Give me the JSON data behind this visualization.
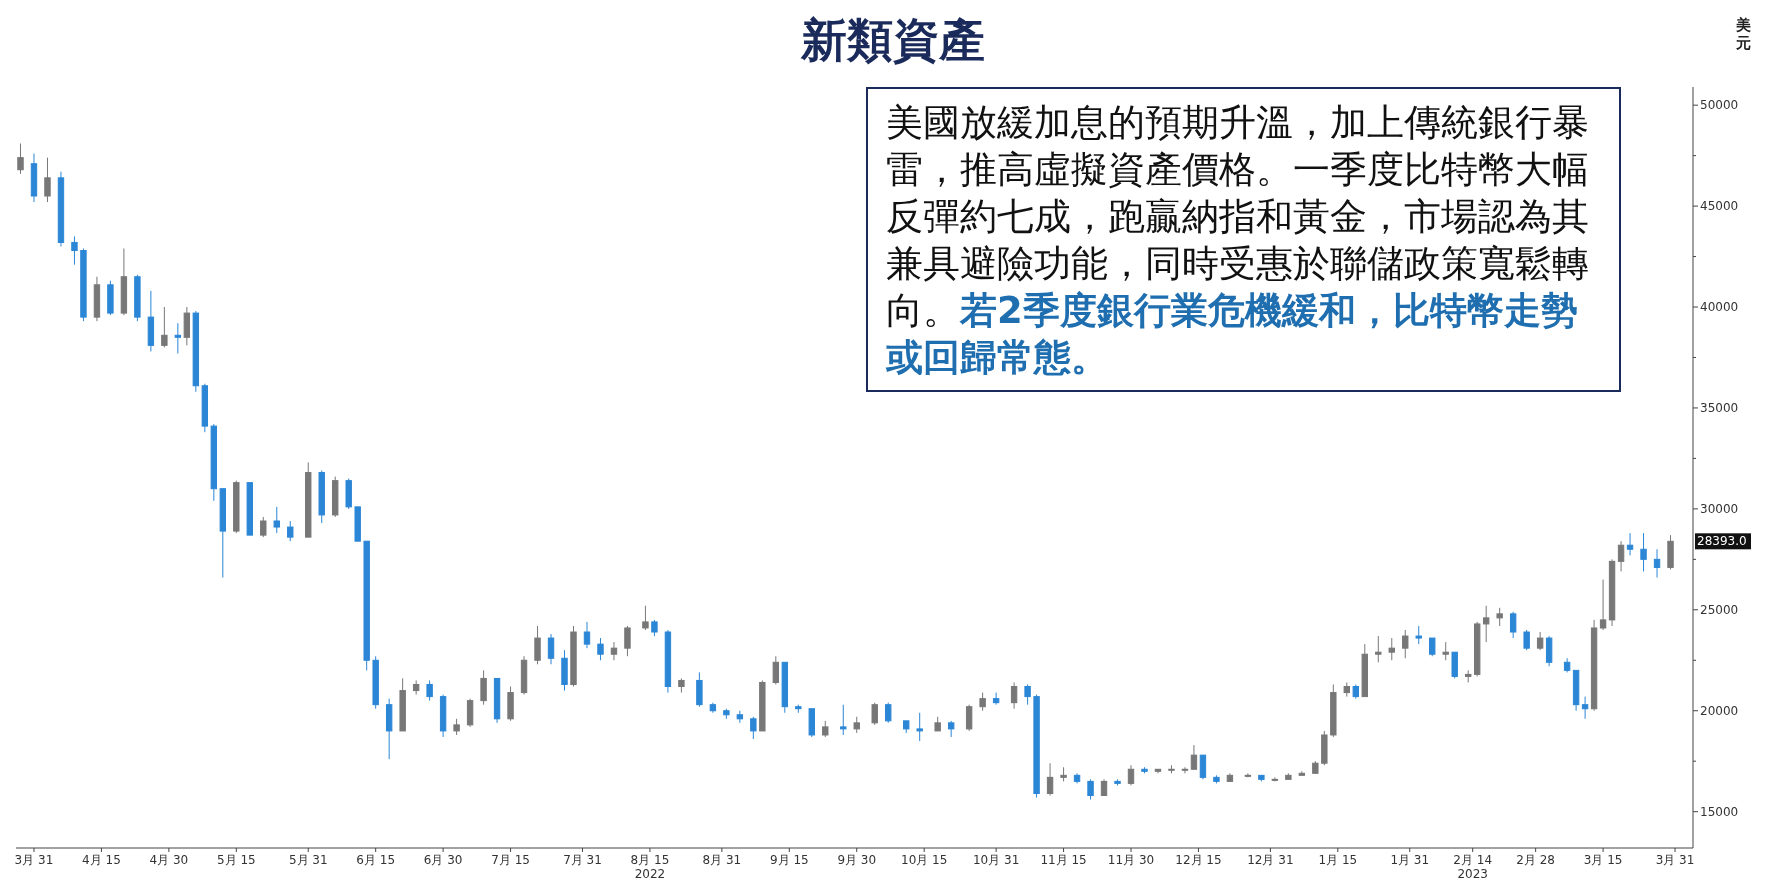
{
  "chart_data": {
    "type": "candlestick",
    "title": "新類資產",
    "ylabel": "美元",
    "annotations": [
      "美國放緩加息的預期升溫，加上傳統銀行暴雷，推高虛擬資產價格。一季度比特幣大幅反彈約七成，跑贏納指和黃金，市場認為其兼具避險功能，同時受惠於聯儲政策寬鬆轉向。",
      "若2季度銀行業危機緩和，比特幣走勢或回歸常態。",
      "28393.0"
    ],
    "xlim": [
      "2022-03-27",
      "2023-04-04"
    ],
    "xticks": [
      {
        "value": "2022-03-31",
        "label": "3月 31"
      },
      {
        "value": "2022-04-15",
        "label": "4月 15"
      },
      {
        "value": "2022-04-30",
        "label": "4月 30"
      },
      {
        "value": "2022-05-15",
        "label": "5月 15"
      },
      {
        "value": "2022-05-31",
        "label": "5月 31"
      },
      {
        "value": "2022-06-15",
        "label": "6月 15"
      },
      {
        "value": "2022-06-30",
        "label": "6月 30"
      },
      {
        "value": "2022-07-15",
        "label": "7月 15"
      },
      {
        "value": "2022-07-31",
        "label": "7月 31"
      },
      {
        "value": "2022-08-15",
        "label": "8月 15\n2022"
      },
      {
        "value": "2022-08-31",
        "label": "8月 31"
      },
      {
        "value": "2022-09-15",
        "label": "9月 15"
      },
      {
        "value": "2022-09-30",
        "label": "9月 30"
      },
      {
        "value": "2022-10-15",
        "label": "10月 15"
      },
      {
        "value": "2022-10-31",
        "label": "10月 31"
      },
      {
        "value": "2022-11-15",
        "label": "11月 15"
      },
      {
        "value": "2022-11-30",
        "label": "11月 30"
      },
      {
        "value": "2022-12-15",
        "label": "12月 15"
      },
      {
        "value": "2022-12-31",
        "label": "12月 31"
      },
      {
        "value": "2023-01-15",
        "label": "1月 15"
      },
      {
        "value": "2023-01-31",
        "label": "1月 31"
      },
      {
        "value": "2023-02-14",
        "label": "2月 14\n2023"
      },
      {
        "value": "2023-02-28",
        "label": "2月 28"
      },
      {
        "value": "2023-03-15",
        "label": "3月 15"
      },
      {
        "value": "2023-03-31",
        "label": "3月 31"
      }
    ],
    "ylim": [
      13200,
      50900
    ],
    "yticks": [
      15000,
      {
        "value": 17500,
        "label": null
      },
      20000,
      {
        "value": 22500,
        "label": null
      },
      25000,
      {
        "value": 27500,
        "label": null
      },
      30000,
      {
        "value": 32500,
        "label": null
      },
      35000,
      {
        "value": 37500,
        "label": null
      },
      40000,
      {
        "value": 42500,
        "label": null
      },
      45000,
      {
        "value": 47500,
        "label": null
      },
      50000
    ],
    "series": [
      {
        "colors": [
          "#777777",
          "#2b86d6",
          "#777777",
          "#2b86d6",
          "#2b86d6",
          "#2b86d6",
          "#777777",
          "#2b86d6",
          "#777777",
          "#2b86d6",
          "#2b86d6",
          "#777777",
          "#2b86d6",
          "#777777",
          "#2b86d6",
          "#2b86d6",
          "#2b86d6",
          "#2b86d6",
          "#777777",
          "#2b86d6",
          "#777777",
          "#2b86d6",
          "#2b86d6",
          "#777777",
          "#2b86d6",
          "#777777",
          "#2b86d6",
          "#2b86d6",
          "#2b86d6",
          "#2b86d6",
          "#2b86d6",
          "#777777",
          "#777777",
          "#2b86d6",
          "#2b86d6",
          "#777777",
          "#777777",
          "#777777",
          "#2b86d6",
          "#777777",
          "#777777",
          "#777777",
          "#2b86d6",
          "#2b86d6",
          "#777777",
          "#2b86d6",
          "#2b86d6",
          "#777777",
          "#777777",
          "#777777",
          "#2b86d6",
          "#2b86d6",
          "#777777",
          "#2b86d6",
          "#2b86d6",
          "#2b86d6",
          "#2b86d6",
          "#2b86d6",
          "#777777",
          "#777777",
          "#2b86d6",
          "#2b86d6",
          "#2b86d6",
          "#777777",
          "#2b86d6",
          "#777777",
          "#777777",
          "#2b86d6",
          "#2b86d6",
          "#2b86d6",
          "#777777",
          "#2b86d6",
          "#777777",
          "#777777",
          "#2b86d6",
          "#777777",
          "#2b86d6",
          "#2b86d6",
          "#777777",
          "#777777",
          "#2b86d6",
          "#2b86d6",
          "#777777",
          "#2b86d6",
          "#777777",
          "#2b86d6",
          "#777777",
          "#777777",
          "#777777",
          "#777777",
          "#2b86d6",
          "#2b86d6",
          "#777777",
          "#777777",
          "#2b86d6",
          "#777777",
          "#777777",
          "#777777",
          "#777777",
          "#777777",
          "#777777",
          "#777777",
          "#2b86d6",
          "#777777",
          "#777777",
          "#777777",
          "#777777",
          "#2b86d6",
          "#2b86d6",
          "#777777",
          "#2b86d6",
          "#777777",
          "#777777",
          "#777777",
          "#777777",
          "#2b86d6",
          "#2b86d6",
          "#777777",
          "#2b86d6",
          "#2b86d6",
          "#2b86d6",
          "#2b86d6",
          "#777777",
          "#777777",
          "#777777",
          "#777777",
          "#2b86d6",
          "#2b86d6",
          "#2b86d6",
          "#777777"
        ],
        "x": [
          "2022-03-28",
          "2022-03-31",
          "2022-04-03",
          "2022-04-06",
          "2022-04-09",
          "2022-04-11",
          "2022-04-14",
          "2022-04-17",
          "2022-04-20",
          "2022-04-23",
          "2022-04-26",
          "2022-04-29",
          "2022-05-02",
          "2022-05-04",
          "2022-05-06",
          "2022-05-08",
          "2022-05-10",
          "2022-05-12",
          "2022-05-15",
          "2022-05-18",
          "2022-05-21",
          "2022-05-24",
          "2022-05-27",
          "2022-05-31",
          "2022-06-03",
          "2022-06-06",
          "2022-06-09",
          "2022-06-11",
          "2022-06-13",
          "2022-06-15",
          "2022-06-18",
          "2022-06-21",
          "2022-06-24",
          "2022-06-27",
          "2022-06-30",
          "2022-07-03",
          "2022-07-06",
          "2022-07-09",
          "2022-07-12",
          "2022-07-15",
          "2022-07-18",
          "2022-07-21",
          "2022-07-24",
          "2022-07-27",
          "2022-07-29",
          "2022-08-01",
          "2022-08-04",
          "2022-08-07",
          "2022-08-10",
          "2022-08-14",
          "2022-08-16",
          "2022-08-19",
          "2022-08-22",
          "2022-08-26",
          "2022-08-29",
          "2022-09-01",
          "2022-09-04",
          "2022-09-07",
          "2022-09-09",
          "2022-09-12",
          "2022-09-14",
          "2022-09-17",
          "2022-09-20",
          "2022-09-23",
          "2022-09-27",
          "2022-09-30",
          "2022-10-04",
          "2022-10-07",
          "2022-10-11",
          "2022-10-14",
          "2022-10-18",
          "2022-10-21",
          "2022-10-25",
          "2022-10-28",
          "2022-10-31",
          "2022-11-04",
          "2022-11-07",
          "2022-11-09",
          "2022-11-12",
          "2022-11-15",
          "2022-11-18",
          "2022-11-21",
          "2022-11-24",
          "2022-11-27",
          "2022-11-30",
          "2022-12-03",
          "2022-12-06",
          "2022-12-09",
          "2022-12-12",
          "2022-12-14",
          "2022-12-16",
          "2022-12-19",
          "2022-12-22",
          "2022-12-26",
          "2022-12-29",
          "2023-01-01",
          "2023-01-04",
          "2023-01-07",
          "2023-01-10",
          "2023-01-12",
          "2023-01-14",
          "2023-01-17",
          "2023-01-19",
          "2023-01-21",
          "2023-01-24",
          "2023-01-27",
          "2023-01-30",
          "2023-02-02",
          "2023-02-05",
          "2023-02-08",
          "2023-02-10",
          "2023-02-13",
          "2023-02-15",
          "2023-02-17",
          "2023-02-20",
          "2023-02-23",
          "2023-02-26",
          "2023-03-01",
          "2023-03-03",
          "2023-03-07",
          "2023-03-09",
          "2023-03-11",
          "2023-03-13",
          "2023-03-15",
          "2023-03-17",
          "2023-03-19",
          "2023-03-21",
          "2023-03-24",
          "2023-03-27",
          "2023-03-30"
        ],
        "ohlc": [
          [
            46800,
            48100,
            46600,
            47400
          ],
          [
            47100,
            47600,
            45200,
            45500
          ],
          [
            45500,
            47400,
            45200,
            46400
          ],
          [
            46400,
            46700,
            43000,
            43200
          ],
          [
            43200,
            43500,
            42100,
            42800
          ],
          [
            42800,
            42900,
            39300,
            39500
          ],
          [
            39500,
            41500,
            39300,
            41100
          ],
          [
            41100,
            41300,
            39600,
            39700
          ],
          [
            39700,
            42900,
            39600,
            41500
          ],
          [
            41500,
            41600,
            39300,
            39500
          ],
          [
            39500,
            40800,
            37800,
            38100
          ],
          [
            38100,
            40000,
            38000,
            38600
          ],
          [
            38600,
            39200,
            37700,
            38500
          ],
          [
            38500,
            40000,
            38100,
            39700
          ],
          [
            39700,
            39800,
            35800,
            36100
          ],
          [
            36100,
            36200,
            33800,
            34100
          ],
          [
            34100,
            34200,
            30400,
            31000
          ],
          [
            31000,
            31000,
            26600,
            28900
          ],
          [
            28900,
            31400,
            28800,
            31300
          ],
          [
            31300,
            31300,
            28700,
            28700
          ],
          [
            28700,
            29600,
            28600,
            29400
          ],
          [
            29400,
            30100,
            28800,
            29100
          ],
          [
            29100,
            29400,
            28400,
            28600
          ],
          [
            28600,
            32300,
            28600,
            31800
          ],
          [
            31800,
            31900,
            29300,
            29700
          ],
          [
            29700,
            31600,
            29600,
            31400
          ],
          [
            31400,
            31500,
            30000,
            30100
          ],
          [
            30100,
            30100,
            28400,
            28400
          ],
          [
            28400,
            28400,
            22000,
            22500
          ],
          [
            22500,
            22700,
            20100,
            20300
          ],
          [
            20300,
            20600,
            17600,
            19000
          ],
          [
            19000,
            21600,
            19000,
            21000
          ],
          [
            21000,
            21500,
            20800,
            21300
          ],
          [
            21300,
            21500,
            20500,
            20700
          ],
          [
            20700,
            20800,
            18700,
            19000
          ],
          [
            19000,
            19600,
            18800,
            19300
          ],
          [
            19300,
            20600,
            19200,
            20500
          ],
          [
            20500,
            22000,
            20300,
            21600
          ],
          [
            21600,
            21600,
            19400,
            19600
          ],
          [
            19600,
            21200,
            19500,
            20900
          ],
          [
            20900,
            22700,
            20800,
            22500
          ],
          [
            22500,
            24200,
            22300,
            23600
          ],
          [
            23600,
            23800,
            22300,
            22600
          ],
          [
            22600,
            23000,
            21000,
            21300
          ],
          [
            21300,
            24200,
            21200,
            23900
          ],
          [
            23900,
            24400,
            23100,
            23300
          ],
          [
            23300,
            23600,
            22500,
            22800
          ],
          [
            22800,
            23400,
            22500,
            23100
          ],
          [
            23100,
            24200,
            22700,
            24100
          ],
          [
            24100,
            25200,
            24000,
            24400
          ],
          [
            24400,
            24500,
            23700,
            23900
          ],
          [
            23900,
            24000,
            20900,
            21200
          ],
          [
            21200,
            21600,
            20900,
            21500
          ],
          [
            21500,
            21900,
            20200,
            20300
          ],
          [
            20300,
            20400,
            19900,
            20000
          ],
          [
            20000,
            20100,
            19600,
            19800
          ],
          [
            19800,
            20000,
            19400,
            19600
          ],
          [
            19600,
            19700,
            18600,
            19000
          ],
          [
            19000,
            21500,
            19000,
            21400
          ],
          [
            21400,
            22700,
            21300,
            22400
          ],
          [
            22400,
            22400,
            19900,
            20200
          ],
          [
            20200,
            20300,
            19900,
            20100
          ],
          [
            20100,
            20100,
            18700,
            18800
          ],
          [
            18800,
            19500,
            18700,
            19200
          ],
          [
            19200,
            20300,
            18800,
            19100
          ],
          [
            19100,
            19700,
            18900,
            19400
          ],
          [
            19400,
            20400,
            19300,
            20300
          ],
          [
            20300,
            20400,
            19400,
            19500
          ],
          [
            19500,
            19500,
            18900,
            19100
          ],
          [
            19100,
            19900,
            18500,
            19000
          ],
          [
            19000,
            19700,
            19000,
            19400
          ],
          [
            19400,
            19500,
            18700,
            19100
          ],
          [
            19100,
            20300,
            19000,
            20200
          ],
          [
            20200,
            20900,
            20000,
            20600
          ],
          [
            20600,
            20900,
            20300,
            20400
          ],
          [
            20400,
            21400,
            20100,
            21200
          ],
          [
            21200,
            21300,
            20300,
            20700
          ],
          [
            20700,
            20800,
            15700,
            15900
          ],
          [
            15900,
            17400,
            15800,
            16700
          ],
          [
            16700,
            17200,
            16500,
            16800
          ],
          [
            16800,
            16900,
            16400,
            16500
          ],
          [
            16500,
            16600,
            15600,
            15800
          ],
          [
            15800,
            16600,
            15800,
            16500
          ],
          [
            16500,
            16600,
            16300,
            16400
          ],
          [
            16400,
            17300,
            16300,
            17100
          ],
          [
            17100,
            17200,
            16900,
            17000
          ],
          [
            17000,
            17100,
            16900,
            17100
          ],
          [
            17100,
            17300,
            16900,
            17100
          ],
          [
            17100,
            17200,
            16900,
            17100
          ],
          [
            17100,
            18300,
            17100,
            17800
          ],
          [
            17800,
            17800,
            16600,
            16700
          ],
          [
            16700,
            16800,
            16400,
            16500
          ],
          [
            16500,
            16900,
            16500,
            16800
          ],
          [
            16800,
            16900,
            16700,
            16800
          ],
          [
            16800,
            16800,
            16500,
            16600
          ],
          [
            16600,
            16700,
            16500,
            16600
          ],
          [
            16600,
            16900,
            16600,
            16800
          ],
          [
            16800,
            17000,
            16800,
            16900
          ],
          [
            16900,
            17500,
            16900,
            17400
          ],
          [
            17400,
            19000,
            17300,
            18800
          ],
          [
            18800,
            21300,
            18700,
            20900
          ],
          [
            20900,
            21400,
            20700,
            21200
          ],
          [
            21200,
            21300,
            20600,
            20700
          ],
          [
            20700,
            23300,
            20700,
            22800
          ],
          [
            22800,
            23700,
            22400,
            22900
          ],
          [
            22900,
            23600,
            22500,
            23100
          ],
          [
            23100,
            24000,
            22600,
            23700
          ],
          [
            23700,
            24200,
            23300,
            23600
          ],
          [
            23600,
            23600,
            22700,
            22800
          ],
          [
            22800,
            23400,
            22500,
            22900
          ],
          [
            22900,
            22900,
            21600,
            21700
          ],
          [
            21700,
            22000,
            21400,
            21800
          ],
          [
            21800,
            24400,
            21700,
            24300
          ],
          [
            24300,
            25200,
            23400,
            24600
          ],
          [
            24600,
            25100,
            24200,
            24800
          ],
          [
            24800,
            24900,
            23600,
            23900
          ],
          [
            23900,
            24000,
            23000,
            23100
          ],
          [
            23100,
            23900,
            23000,
            23600
          ],
          [
            23600,
            23700,
            22200,
            22400
          ],
          [
            22400,
            22600,
            21900,
            22000
          ],
          [
            22000,
            22000,
            20000,
            20300
          ],
          [
            20300,
            20700,
            19600,
            20100
          ],
          [
            20100,
            24500,
            20000,
            24100
          ],
          [
            24100,
            26500,
            24000,
            24500
          ],
          [
            24500,
            27500,
            24200,
            27400
          ],
          [
            27400,
            28400,
            26900,
            28200
          ],
          [
            28200,
            28800,
            27700,
            28000
          ],
          [
            28000,
            28800,
            26900,
            27500
          ],
          [
            27500,
            28000,
            26600,
            27100
          ],
          [
            27100,
            28700,
            27000,
            28393
          ]
        ]
      }
    ]
  }
}
